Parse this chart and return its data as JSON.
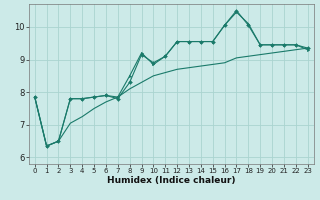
{
  "xlabel": "Humidex (Indice chaleur)",
  "bg_color": "#cceae8",
  "grid_color": "#aad4d0",
  "line_color": "#1a7a6a",
  "xlim": [
    -0.5,
    23.5
  ],
  "ylim": [
    5.8,
    10.7
  ],
  "xticks": [
    0,
    1,
    2,
    3,
    4,
    5,
    6,
    7,
    8,
    9,
    10,
    11,
    12,
    13,
    14,
    15,
    16,
    17,
    18,
    19,
    20,
    21,
    22,
    23
  ],
  "yticks": [
    6,
    7,
    8,
    9,
    10
  ],
  "line1_x": [
    0,
    1,
    2,
    3,
    4,
    5,
    6,
    7,
    8,
    9,
    10,
    11,
    12,
    13,
    14,
    15,
    16,
    17,
    18,
    19,
    20,
    21,
    22,
    23
  ],
  "line1_y": [
    7.85,
    6.35,
    6.5,
    7.8,
    7.8,
    7.85,
    7.9,
    7.8,
    8.3,
    9.15,
    8.9,
    9.1,
    9.55,
    9.55,
    9.55,
    9.55,
    10.05,
    10.5,
    10.05,
    9.45,
    9.45,
    9.45,
    9.45,
    9.35
  ],
  "line2_x": [
    0,
    1,
    2,
    3,
    4,
    5,
    6,
    7,
    8,
    9,
    10,
    11,
    12,
    13,
    14,
    15,
    16,
    17,
    18,
    19,
    20,
    21,
    22,
    23
  ],
  "line2_y": [
    7.85,
    6.35,
    6.5,
    7.8,
    7.8,
    7.85,
    7.9,
    7.85,
    8.5,
    9.2,
    8.85,
    9.1,
    9.55,
    9.55,
    9.55,
    9.55,
    10.05,
    10.45,
    10.1,
    9.45,
    9.45,
    9.45,
    9.45,
    9.3
  ],
  "line3_x": [
    0,
    1,
    2,
    3,
    4,
    5,
    6,
    7,
    8,
    9,
    10,
    11,
    12,
    13,
    14,
    15,
    16,
    17,
    18,
    19,
    20,
    21,
    22,
    23
  ],
  "line3_y": [
    7.85,
    6.35,
    6.5,
    7.05,
    7.25,
    7.5,
    7.7,
    7.85,
    8.1,
    8.3,
    8.5,
    8.6,
    8.7,
    8.75,
    8.8,
    8.85,
    8.9,
    9.05,
    9.1,
    9.15,
    9.2,
    9.25,
    9.3,
    9.35
  ]
}
